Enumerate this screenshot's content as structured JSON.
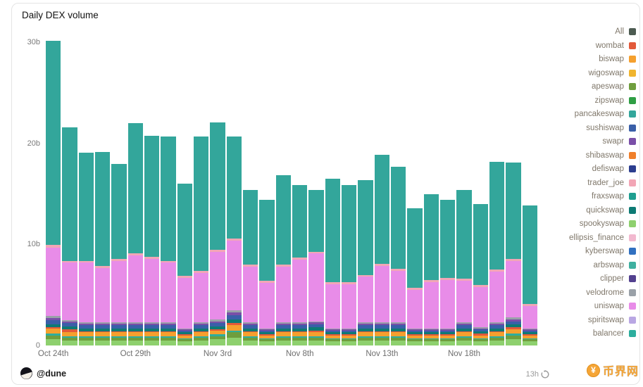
{
  "card": {
    "title": "Daily DEX volume"
  },
  "footer": {
    "author": "@dune",
    "refreshed": "13h"
  },
  "watermark": {
    "text": "币界网",
    "symbol": "¥",
    "color": "#f5a12c"
  },
  "legend": {
    "items": [
      {
        "label": "All",
        "color": "#4c5b51"
      },
      {
        "label": "wombat",
        "color": "#e2593a"
      },
      {
        "label": "biswap",
        "color": "#f5a02e"
      },
      {
        "label": "wigoswap",
        "color": "#f0b52f"
      },
      {
        "label": "apeswap",
        "color": "#6f9e3e"
      },
      {
        "label": "zipswap",
        "color": "#2f9e44"
      },
      {
        "label": "pancakeswap",
        "color": "#33a69b"
      },
      {
        "label": "sushiswap",
        "color": "#3a5fa8"
      },
      {
        "label": "swapr",
        "color": "#7a4fa8"
      },
      {
        "label": "shibaswap",
        "color": "#f07f2a"
      },
      {
        "label": "defiswap",
        "color": "#2c3e8f"
      },
      {
        "label": "trader_joe",
        "color": "#f2a6b6"
      },
      {
        "label": "fraxswap",
        "color": "#1f9e90"
      },
      {
        "label": "quickswap",
        "color": "#0d7a74"
      },
      {
        "label": "spookyswap",
        "color": "#8ed06e"
      },
      {
        "label": "ellipsis_finance",
        "color": "#f2b9cf"
      },
      {
        "label": "kyberswap",
        "color": "#3170c0"
      },
      {
        "label": "arbswap",
        "color": "#3fb0a0"
      },
      {
        "label": "clipper",
        "color": "#53418f"
      },
      {
        "label": "velodrome",
        "color": "#9aa1a8"
      },
      {
        "label": "uniswap",
        "color": "#e88ce8"
      },
      {
        "label": "spiritswap",
        "color": "#b9a7e3"
      },
      {
        "label": "balancer",
        "color": "#2dae9e"
      }
    ]
  },
  "chart_data": {
    "type": "bar",
    "stacked": true,
    "title": "Daily DEX volume",
    "xlabel": "",
    "ylabel": "",
    "unit": "billions USD",
    "num_bars": 30,
    "ylim": [
      0,
      31
    ],
    "y_ticks": [
      {
        "value": 0,
        "label": "0"
      },
      {
        "value": 10,
        "label": "10b"
      },
      {
        "value": 20,
        "label": "20b"
      },
      {
        "value": 30,
        "label": "30b"
      }
    ],
    "x_ticks": [
      {
        "index": 0,
        "label": "Oct 24th"
      },
      {
        "index": 5,
        "label": "Oct 29th"
      },
      {
        "index": 10,
        "label": "Nov 3rd"
      },
      {
        "index": 15,
        "label": "Nov 8th"
      },
      {
        "index": 20,
        "label": "Nov 13th"
      },
      {
        "index": 25,
        "label": "Nov 18th"
      }
    ],
    "series": [
      {
        "name": "spookyswap",
        "color": "#8ed06e",
        "values": [
          0.6,
          0.5,
          0.5,
          0.5,
          0.5,
          0.5,
          0.5,
          0.5,
          0.4,
          0.5,
          0.6,
          0.8,
          0.5,
          0.4,
          0.5,
          0.5,
          0.5,
          0.4,
          0.4,
          0.5,
          0.5,
          0.5,
          0.4,
          0.4,
          0.4,
          0.5,
          0.4,
          0.5,
          0.6,
          0.4
        ]
      },
      {
        "name": "apeswap",
        "color": "#6f9e3e",
        "values": [
          0.4,
          0.3,
          0.3,
          0.3,
          0.3,
          0.3,
          0.3,
          0.3,
          0.2,
          0.3,
          0.3,
          0.5,
          0.3,
          0.2,
          0.3,
          0.3,
          0.3,
          0.2,
          0.2,
          0.3,
          0.3,
          0.3,
          0.2,
          0.2,
          0.2,
          0.3,
          0.2,
          0.3,
          0.4,
          0.2
        ]
      },
      {
        "name": "balancer",
        "color": "#2dae9e",
        "values": [
          0.2,
          0.1,
          0.1,
          0.1,
          0.1,
          0.1,
          0.1,
          0.1,
          0.1,
          0.1,
          0.2,
          0.2,
          0.1,
          0.1,
          0.1,
          0.1,
          0.1,
          0.1,
          0.1,
          0.1,
          0.1,
          0.1,
          0.1,
          0.1,
          0.1,
          0.1,
          0.1,
          0.1,
          0.2,
          0.1
        ]
      },
      {
        "name": "biswap",
        "color": "#f5a02e",
        "values": [
          0.5,
          0.4,
          0.4,
          0.4,
          0.4,
          0.4,
          0.4,
          0.4,
          0.3,
          0.4,
          0.4,
          0.5,
          0.4,
          0.3,
          0.4,
          0.4,
          0.4,
          0.3,
          0.3,
          0.4,
          0.4,
          0.4,
          0.3,
          0.3,
          0.3,
          0.4,
          0.3,
          0.4,
          0.4,
          0.3
        ]
      },
      {
        "name": "wombat",
        "color": "#e2593a",
        "values": [
          0.1,
          0.3,
          0.1,
          0.1,
          0.1,
          0.1,
          0.1,
          0.1,
          0.1,
          0.1,
          0.1,
          0.2,
          0.1,
          0.1,
          0.1,
          0.1,
          0.2,
          0.1,
          0.1,
          0.1,
          0.1,
          0.1,
          0.1,
          0.1,
          0.1,
          0.1,
          0.2,
          0.1,
          0.2,
          0.1
        ]
      },
      {
        "name": "quickswap",
        "color": "#0d7a74",
        "values": [
          0.3,
          0.3,
          0.3,
          0.3,
          0.3,
          0.3,
          0.3,
          0.3,
          0.2,
          0.3,
          0.3,
          0.4,
          0.3,
          0.2,
          0.3,
          0.3,
          0.3,
          0.2,
          0.2,
          0.3,
          0.3,
          0.3,
          0.2,
          0.2,
          0.2,
          0.3,
          0.2,
          0.3,
          0.3,
          0.2
        ]
      },
      {
        "name": "sushiswap",
        "color": "#3a5fa8",
        "values": [
          0.4,
          0.3,
          0.3,
          0.3,
          0.3,
          0.3,
          0.3,
          0.3,
          0.2,
          0.3,
          0.3,
          0.4,
          0.3,
          0.2,
          0.3,
          0.3,
          0.3,
          0.2,
          0.2,
          0.3,
          0.3,
          0.3,
          0.2,
          0.2,
          0.2,
          0.3,
          0.2,
          0.3,
          0.3,
          0.2
        ]
      },
      {
        "name": "swapr",
        "color": "#7a4fa8",
        "values": [
          0.2,
          0.2,
          0.2,
          0.2,
          0.2,
          0.2,
          0.2,
          0.2,
          0.1,
          0.2,
          0.2,
          0.3,
          0.2,
          0.1,
          0.2,
          0.2,
          0.2,
          0.1,
          0.1,
          0.2,
          0.2,
          0.2,
          0.1,
          0.1,
          0.1,
          0.2,
          0.1,
          0.2,
          0.2,
          0.1
        ]
      },
      {
        "name": "velodrome",
        "color": "#9aa1a8",
        "values": [
          0.2,
          0.1,
          0.1,
          0.1,
          0.1,
          0.1,
          0.1,
          0.1,
          0.1,
          0.1,
          0.2,
          0.2,
          0.1,
          0.1,
          0.1,
          0.1,
          0.1,
          0.1,
          0.1,
          0.1,
          0.1,
          0.1,
          0.1,
          0.1,
          0.1,
          0.1,
          0.1,
          0.1,
          0.2,
          0.1
        ]
      },
      {
        "name": "uniswap",
        "color": "#e88ce8",
        "values": [
          6.8,
          5.7,
          5.9,
          5.4,
          6.1,
          6.6,
          6.3,
          5.9,
          5.0,
          4.9,
          6.7,
          6.9,
          5.5,
          4.5,
          5.5,
          6.2,
          6.7,
          4.4,
          4.4,
          4.5,
          5.6,
          5.1,
          3.8,
          4.6,
          4.8,
          4.1,
          4.0,
          5.0,
          5.6,
          2.2
        ]
      },
      {
        "name": "trader_joe",
        "color": "#f2a6b6",
        "values": [
          0.3,
          0.2,
          0.2,
          0.2,
          0.2,
          0.2,
          0.2,
          0.2,
          0.2,
          0.2,
          0.2,
          0.2,
          0.2,
          0.2,
          0.2,
          0.2,
          0.2,
          0.2,
          0.2,
          0.2,
          0.2,
          0.2,
          0.2,
          0.2,
          0.2,
          0.2,
          0.2,
          0.2,
          0.2,
          0.2
        ]
      },
      {
        "name": "pancakeswap",
        "color": "#33a69b",
        "values": [
          20.2,
          13.2,
          10.7,
          11.3,
          9.4,
          12.9,
          12.0,
          12.3,
          9.1,
          13.3,
          12.6,
          10.1,
          7.4,
          8.0,
          8.9,
          7.2,
          6.1,
          10.2,
          9.6,
          9.4,
          10.8,
          10.1,
          7.9,
          8.5,
          7.7,
          8.8,
          8.0,
          10.7,
          9.5,
          9.8
        ]
      }
    ]
  }
}
